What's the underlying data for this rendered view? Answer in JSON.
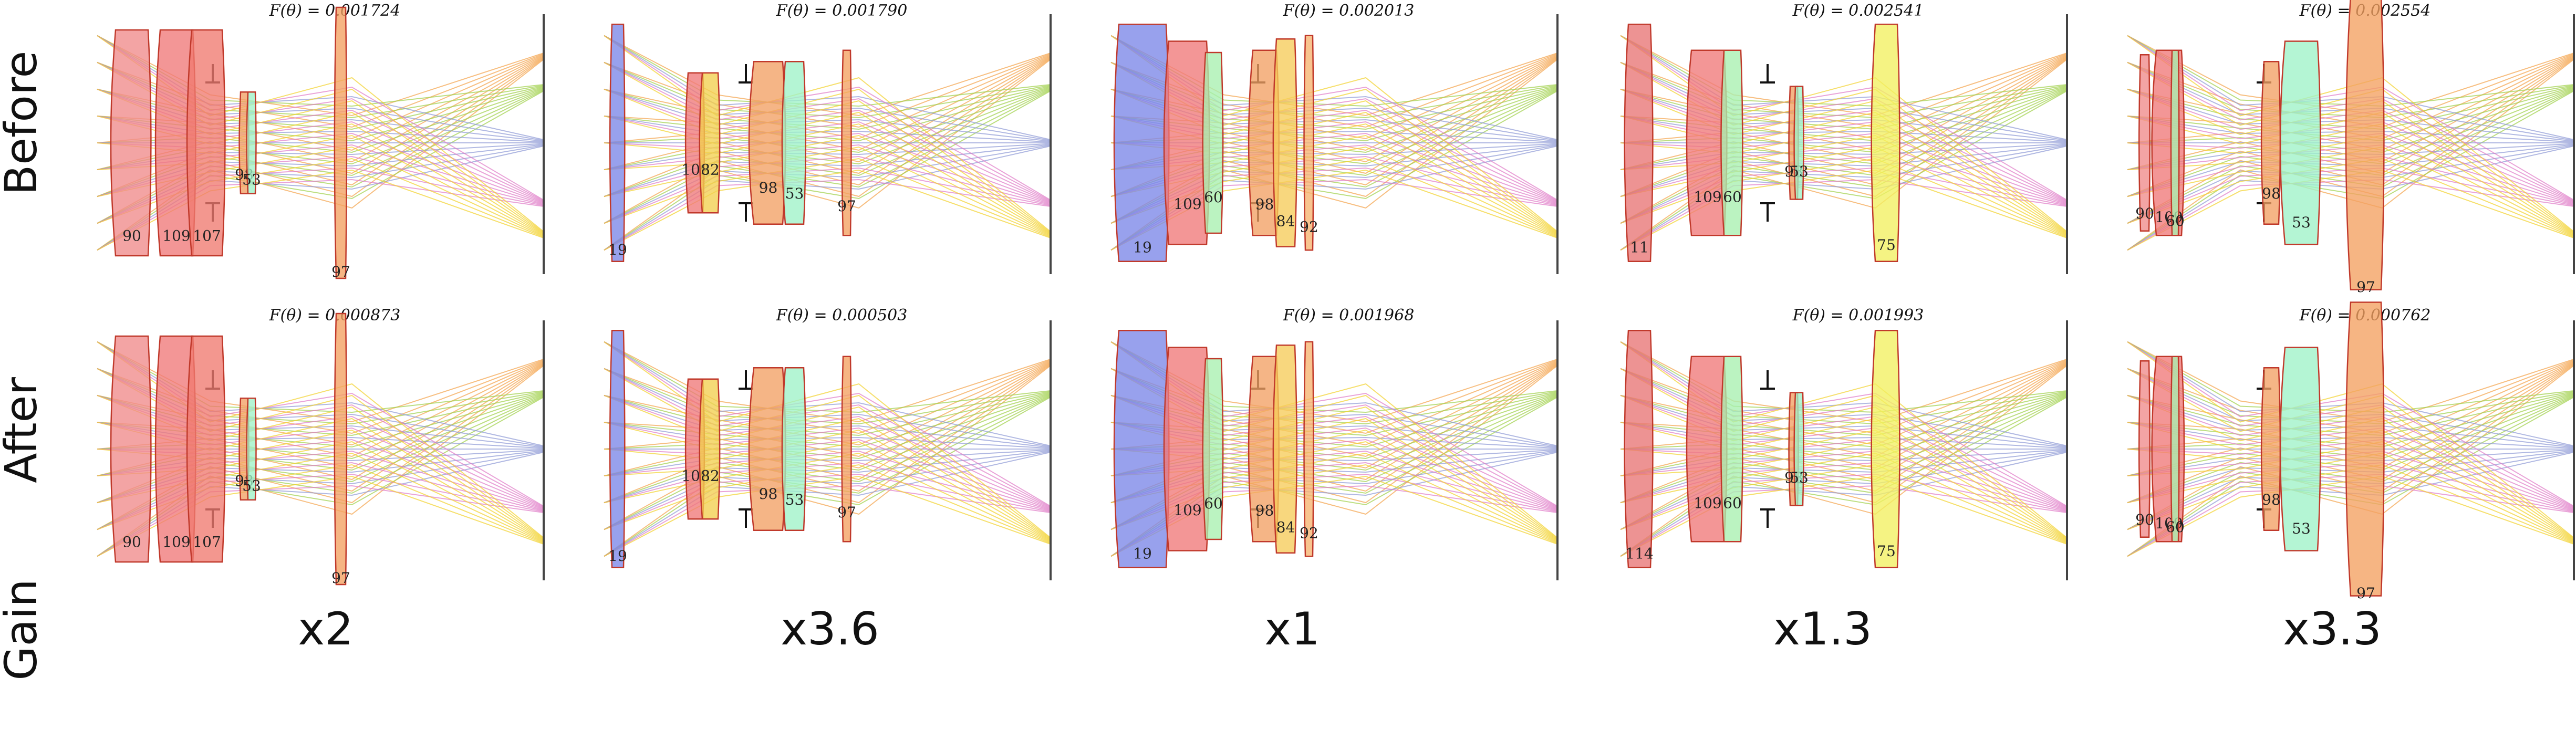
{
  "row_labels": {
    "before": "Before",
    "after": "After",
    "gain": "Gain"
  },
  "objective_prefix": "F(θ) = ",
  "ray_colors": [
    "#f4a24a",
    "#9fd04a",
    "#8f9ad6",
    "#e07cc8",
    "#f2d22c"
  ],
  "glass_colors": {
    "90": "#f08a8a",
    "109": "#f07878",
    "107": "#f07a70",
    "98": "#f2a064",
    "53": "#9ff2c8",
    "97": "#f4a060",
    "19": "#7b86e8",
    "82": "#f2d050",
    "60": "#a8f0b0",
    "84": "#f6cc5a",
    "92": "#f6b470",
    "114": "#e87474",
    "11": "#e87474",
    "75": "#f2f060"
  },
  "designs": [
    {
      "gain": "x2",
      "before": {
        "objective": "0.001724",
        "elements": [
          {
            "label": "90",
            "glass": "90"
          },
          {
            "label": "109",
            "glass": "109"
          },
          {
            "label": "107",
            "glass": "107"
          },
          {
            "label": "98",
            "glass": "98"
          },
          {
            "label": "53",
            "glass": "53"
          },
          {
            "label": "97",
            "glass": "97"
          }
        ]
      },
      "after": {
        "objective": "0.000873",
        "elements": [
          {
            "label": "90",
            "glass": "90"
          },
          {
            "label": "109",
            "glass": "109"
          },
          {
            "label": "107",
            "glass": "107"
          },
          {
            "label": "98",
            "glass": "98"
          },
          {
            "label": "53",
            "glass": "53"
          },
          {
            "label": "97",
            "glass": "97"
          }
        ]
      }
    },
    {
      "gain": "x3.6",
      "before": {
        "objective": "0.001790",
        "elements": [
          {
            "label": "19",
            "glass": "19"
          },
          {
            "label": "109",
            "glass": "109"
          },
          {
            "label": "82",
            "glass": "82"
          },
          {
            "label": "98",
            "glass": "98"
          },
          {
            "label": "53",
            "glass": "53"
          },
          {
            "label": "97",
            "glass": "97"
          }
        ]
      },
      "after": {
        "objective": "0.000503",
        "elements": [
          {
            "label": "19",
            "glass": "19"
          },
          {
            "label": "109",
            "glass": "109"
          },
          {
            "label": "82",
            "glass": "82"
          },
          {
            "label": "98",
            "glass": "98"
          },
          {
            "label": "53",
            "glass": "53"
          },
          {
            "label": "97",
            "glass": "97"
          }
        ]
      }
    },
    {
      "gain": "x1",
      "before": {
        "objective": "0.002013",
        "elements": [
          {
            "label": "19",
            "glass": "19"
          },
          {
            "label": "109",
            "glass": "109"
          },
          {
            "label": "60",
            "glass": "60"
          },
          {
            "label": "98",
            "glass": "98"
          },
          {
            "label": "84",
            "glass": "84"
          },
          {
            "label": "92",
            "glass": "92"
          }
        ]
      },
      "after": {
        "objective": "0.001968",
        "elements": [
          {
            "label": "19",
            "glass": "19"
          },
          {
            "label": "109",
            "glass": "109"
          },
          {
            "label": "60",
            "glass": "60"
          },
          {
            "label": "98",
            "glass": "98"
          },
          {
            "label": "84",
            "glass": "84"
          },
          {
            "label": "92",
            "glass": "92"
          }
        ]
      }
    },
    {
      "gain": "x1.3",
      "before": {
        "objective": "0.002541",
        "elements": [
          {
            "label": "11",
            "glass": "11"
          },
          {
            "label": "109",
            "glass": "109"
          },
          {
            "label": "60",
            "glass": "60"
          },
          {
            "label": "98",
            "glass": "98"
          },
          {
            "label": "53",
            "glass": "53"
          },
          {
            "label": "75",
            "glass": "75"
          }
        ]
      },
      "after": {
        "objective": "0.001993",
        "elements": [
          {
            "label": "114",
            "glass": "114"
          },
          {
            "label": "109",
            "glass": "109"
          },
          {
            "label": "60",
            "glass": "60"
          },
          {
            "label": "98",
            "glass": "98"
          },
          {
            "label": "53",
            "glass": "53"
          },
          {
            "label": "75",
            "glass": "75"
          }
        ]
      }
    },
    {
      "gain": "x3.3",
      "before": {
        "objective": "0.002554",
        "elements": [
          {
            "label": "90",
            "glass": "90"
          },
          {
            "label": "109",
            "glass": "109"
          },
          {
            "label": "60",
            "glass": "60"
          },
          {
            "label": "98",
            "glass": "98"
          },
          {
            "label": "53",
            "glass": "53"
          },
          {
            "label": "97",
            "glass": "97"
          }
        ]
      },
      "after": {
        "objective": "0.000762",
        "elements": [
          {
            "label": "90",
            "glass": "90"
          },
          {
            "label": "109",
            "glass": "109"
          },
          {
            "label": "60",
            "glass": "60"
          },
          {
            "label": "98",
            "glass": "98"
          },
          {
            "label": "53",
            "glass": "53"
          },
          {
            "label": "97",
            "glass": "97"
          }
        ]
      }
    }
  ]
}
